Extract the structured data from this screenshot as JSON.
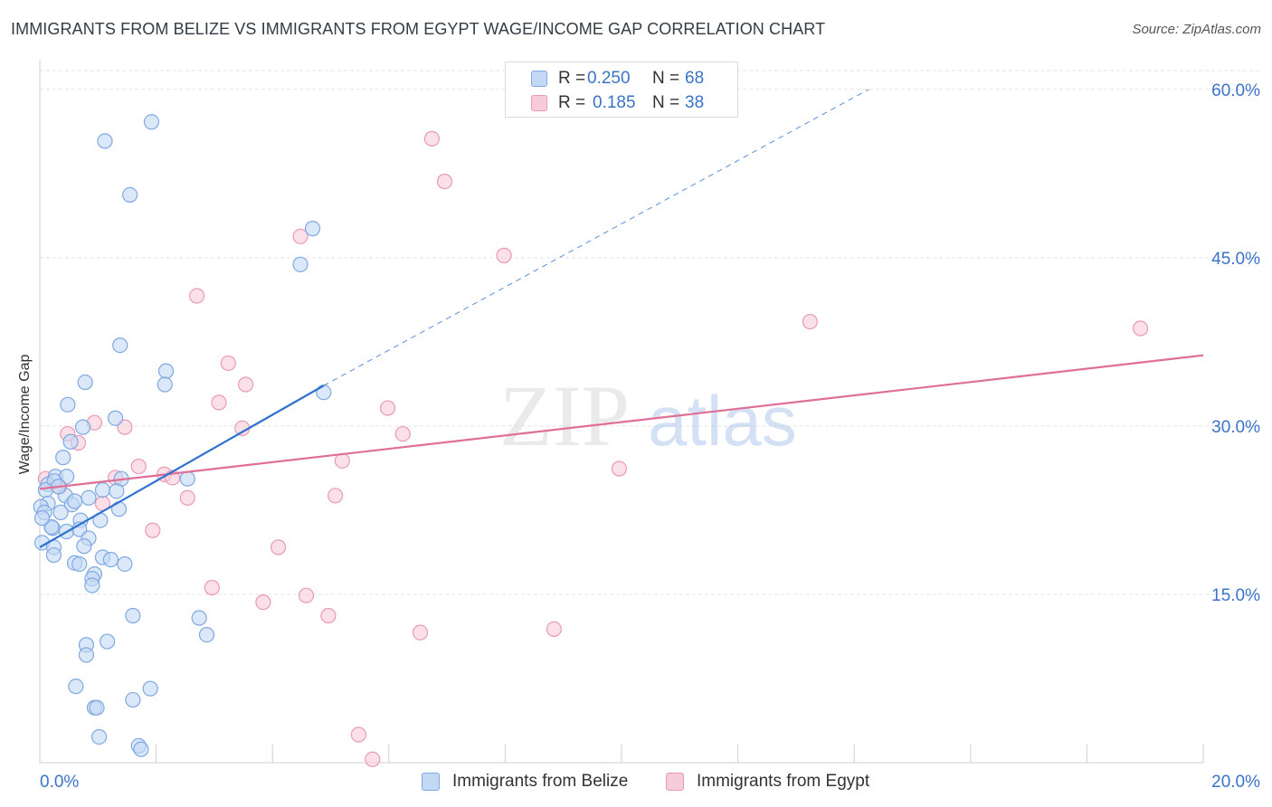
{
  "title": "IMMIGRANTS FROM BELIZE VS IMMIGRANTS FROM EGYPT WAGE/INCOME GAP CORRELATION CHART",
  "source": "Source: ZipAtlas.com",
  "watermark": {
    "zip": "ZIP",
    "atlas": "atlas"
  },
  "legend_top": {
    "belize": {
      "r_label": "R =",
      "r_value": "0.250",
      "n_label": "N =",
      "n_value": "68"
    },
    "egypt": {
      "r_label": "R =",
      "r_value": "0.185",
      "n_label": "N =",
      "n_value": "38"
    }
  },
  "legend_bottom": {
    "belize": "Immigrants from Belize",
    "egypt": "Immigrants from Egypt"
  },
  "colors": {
    "belize_fill": "#c3d8f5",
    "belize_stroke": "#7fa9e0",
    "belize_line": "#2f72cf",
    "egypt_fill": "#f8cbd9",
    "egypt_stroke": "#e99ab4",
    "egypt_line": "#e06f98",
    "tick_text": "#3b73c9",
    "grid": "#e3e3e3"
  },
  "chart_data": {
    "type": "scatter",
    "title": "IMMIGRANTS FROM BELIZE VS IMMIGRANTS FROM EGYPT WAGE/INCOME GAP CORRELATION CHART",
    "xlabel": "",
    "ylabel": "Wage/Income Gap",
    "xlim": [
      0,
      20
    ],
    "ylim": [
      0,
      62
    ],
    "x_tick_labels": [
      {
        "value": 0,
        "label": "0.0%"
      },
      {
        "value": 20,
        "label": "20.0%"
      }
    ],
    "y_ticks": [
      {
        "value": 15,
        "label": "15.0%"
      },
      {
        "value": 30,
        "label": "30.0%"
      },
      {
        "value": 45,
        "label": "45.0%"
      },
      {
        "value": 60,
        "label": "60.0%"
      }
    ],
    "x_minor_ticks": [
      2,
      4,
      6,
      8,
      10,
      12,
      14,
      16,
      18,
      20
    ],
    "series": [
      {
        "name": "Immigrants from Belize",
        "points": [
          [
            1.92,
            57.1
          ],
          [
            1.12,
            55.4
          ],
          [
            1.55,
            50.6
          ],
          [
            4.69,
            47.6
          ],
          [
            4.48,
            44.4
          ],
          [
            1.38,
            37.2
          ],
          [
            2.17,
            34.9
          ],
          [
            0.78,
            33.9
          ],
          [
            2.15,
            33.7
          ],
          [
            4.88,
            33.0
          ],
          [
            0.48,
            31.9
          ],
          [
            1.3,
            30.7
          ],
          [
            0.74,
            29.9
          ],
          [
            0.53,
            28.6
          ],
          [
            0.4,
            27.2
          ],
          [
            0.27,
            25.5
          ],
          [
            0.46,
            25.5
          ],
          [
            1.4,
            25.3
          ],
          [
            2.54,
            25.3
          ],
          [
            0.14,
            24.8
          ],
          [
            0.25,
            25.1
          ],
          [
            0.1,
            24.3
          ],
          [
            1.08,
            24.3
          ],
          [
            1.32,
            24.2
          ],
          [
            0.44,
            23.8
          ],
          [
            0.84,
            23.6
          ],
          [
            0.14,
            23.1
          ],
          [
            0.02,
            22.8
          ],
          [
            0.55,
            23.0
          ],
          [
            0.6,
            23.3
          ],
          [
            1.36,
            22.6
          ],
          [
            0.36,
            22.3
          ],
          [
            0.7,
            21.6
          ],
          [
            1.04,
            21.6
          ],
          [
            0.22,
            20.9
          ],
          [
            0.46,
            20.6
          ],
          [
            0.68,
            20.8
          ],
          [
            0.84,
            20.0
          ],
          [
            0.04,
            19.6
          ],
          [
            0.24,
            19.2
          ],
          [
            0.76,
            19.3
          ],
          [
            0.24,
            18.5
          ],
          [
            1.08,
            18.3
          ],
          [
            1.22,
            18.1
          ],
          [
            0.6,
            17.8
          ],
          [
            0.68,
            17.7
          ],
          [
            1.46,
            17.7
          ],
          [
            0.94,
            16.8
          ],
          [
            0.9,
            16.4
          ],
          [
            0.9,
            15.8
          ],
          [
            1.6,
            13.1
          ],
          [
            2.74,
            12.9
          ],
          [
            2.87,
            11.4
          ],
          [
            1.16,
            10.8
          ],
          [
            0.8,
            10.5
          ],
          [
            0.8,
            9.6
          ],
          [
            0.62,
            6.8
          ],
          [
            1.9,
            6.6
          ],
          [
            1.6,
            5.6
          ],
          [
            0.94,
            4.9
          ],
          [
            0.98,
            4.9
          ],
          [
            1.02,
            2.3
          ],
          [
            1.7,
            1.5
          ],
          [
            1.74,
            1.2
          ],
          [
            0.08,
            22.3
          ],
          [
            0.2,
            21.0
          ],
          [
            0.04,
            21.8
          ],
          [
            0.32,
            24.6
          ]
        ]
      },
      {
        "name": "Immigrants from Egypt",
        "points": [
          [
            6.74,
            55.6
          ],
          [
            6.96,
            51.8
          ],
          [
            7.98,
            45.2
          ],
          [
            4.48,
            46.9
          ],
          [
            2.7,
            41.6
          ],
          [
            13.24,
            39.3
          ],
          [
            18.92,
            38.7
          ],
          [
            3.24,
            35.6
          ],
          [
            3.54,
            33.7
          ],
          [
            3.08,
            32.1
          ],
          [
            5.98,
            31.6
          ],
          [
            0.94,
            30.3
          ],
          [
            3.48,
            29.8
          ],
          [
            0.48,
            29.3
          ],
          [
            1.46,
            29.9
          ],
          [
            6.24,
            29.3
          ],
          [
            0.66,
            28.5
          ],
          [
            5.2,
            26.9
          ],
          [
            1.7,
            26.4
          ],
          [
            9.96,
            26.2
          ],
          [
            2.14,
            25.7
          ],
          [
            1.3,
            25.4
          ],
          [
            0.1,
            25.3
          ],
          [
            2.28,
            25.4
          ],
          [
            0.34,
            24.6
          ],
          [
            5.08,
            23.8
          ],
          [
            2.54,
            23.6
          ],
          [
            1.08,
            23.1
          ],
          [
            1.94,
            20.7
          ],
          [
            4.1,
            19.2
          ],
          [
            2.96,
            15.6
          ],
          [
            4.58,
            14.9
          ],
          [
            3.84,
            14.3
          ],
          [
            4.96,
            13.1
          ],
          [
            8.84,
            11.9
          ],
          [
            6.54,
            11.6
          ],
          [
            5.48,
            2.5
          ],
          [
            5.72,
            0.3
          ]
        ]
      }
    ],
    "trendlines": [
      {
        "series": "Immigrants from Belize",
        "solid": [
          [
            0,
            19.2
          ],
          [
            4.88,
            33.6
          ]
        ],
        "dashed": [
          [
            4.88,
            33.6
          ],
          [
            14.25,
            60.0
          ]
        ]
      },
      {
        "series": "Immigrants from Egypt",
        "solid": [
          [
            0,
            24.4
          ],
          [
            20,
            36.3
          ]
        ]
      }
    ],
    "stats": [
      {
        "series": "Immigrants from Belize",
        "R": 0.25,
        "N": 68
      },
      {
        "series": "Immigrants from Egypt",
        "R": 0.185,
        "N": 38
      }
    ],
    "grid": true,
    "legend_position": "top-center"
  }
}
